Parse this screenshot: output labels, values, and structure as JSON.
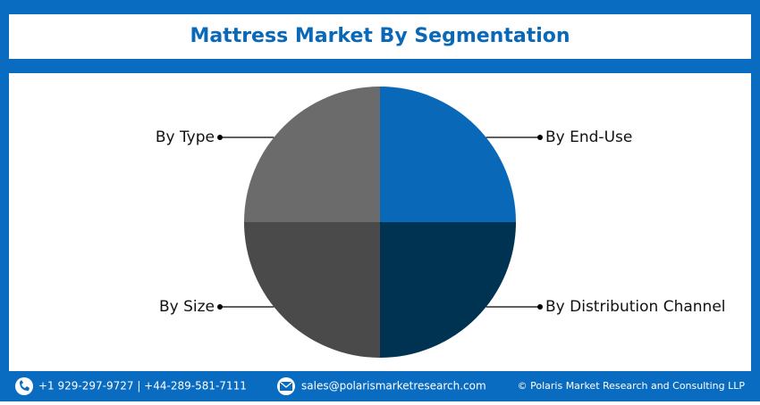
{
  "chart_data": {
    "type": "pie",
    "title": "Mattress Market By Segmentation",
    "categories": [
      "By End-Use",
      "By Distribution Channel",
      "By Size",
      "By Type"
    ],
    "values": [
      25,
      25,
      25,
      25
    ],
    "colors": [
      "#0a68b8",
      "#003352",
      "#4a4a4a",
      "#6b6b6b"
    ]
  },
  "footer": {
    "phone": "+1 929-297-9727 | +44-289-581-7111",
    "email": "sales@polarismarketresearch.com",
    "copyright": "© Polaris Market Research and Consulting LLP"
  }
}
